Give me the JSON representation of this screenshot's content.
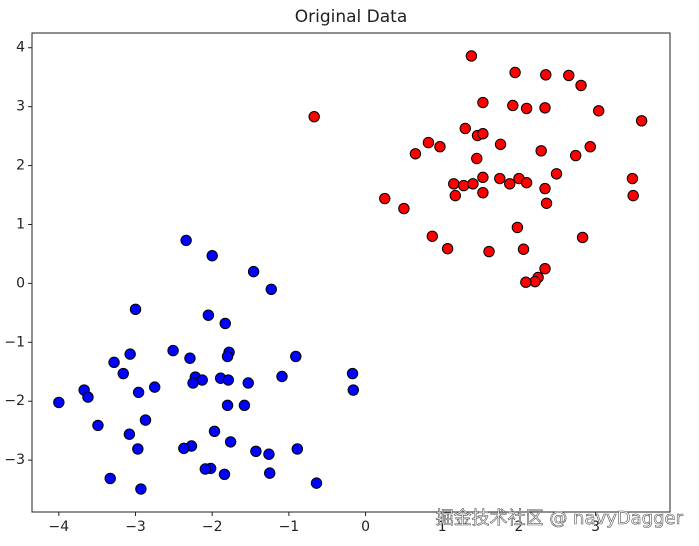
{
  "chart_data": {
    "type": "scatter",
    "title": "Original Data",
    "xlim": [
      -4.35,
      3.97
    ],
    "ylim": [
      -3.88,
      4.25
    ],
    "xticks": [
      {
        "value": -4,
        "label": "−4"
      },
      {
        "value": -3,
        "label": "−3"
      },
      {
        "value": -2,
        "label": "−2"
      },
      {
        "value": -1,
        "label": "−1"
      },
      0,
      1,
      2,
      3
    ],
    "yticks": [
      {
        "value": -3,
        "label": "−3"
      },
      {
        "value": -2,
        "label": "−2"
      },
      {
        "value": -1,
        "label": "−1"
      },
      0,
      1,
      2,
      3,
      4
    ],
    "grid": false,
    "series": [
      {
        "color": "#ff0000",
        "x": [
          1.38,
          1.95,
          2.35,
          2.65,
          2.81,
          1.53,
          1.92,
          2.1,
          2.34,
          3.04,
          -0.67,
          3.6,
          1.3,
          1.46,
          1.53,
          0.82,
          0.97,
          1.76,
          2.29,
          2.93,
          0.65,
          2.74,
          1.45,
          2.49,
          1.53,
          1.15,
          1.28,
          1.4,
          1.75,
          1.88,
          2.0,
          2.1,
          3.48,
          2.34,
          1.17,
          1.53,
          3.49,
          0.25,
          0.5,
          2.36,
          0.87,
          1.07,
          1.98,
          2.83,
          1.61,
          2.06,
          2.34,
          2.25,
          2.21,
          2.09
        ],
        "values": [
          3.86,
          3.58,
          3.54,
          3.53,
          3.36,
          3.07,
          3.02,
          2.97,
          2.98,
          2.93,
          2.83,
          2.76,
          2.63,
          2.51,
          2.54,
          2.39,
          2.32,
          2.36,
          2.25,
          2.32,
          2.2,
          2.17,
          2.12,
          1.86,
          1.8,
          1.69,
          1.66,
          1.69,
          1.78,
          1.69,
          1.78,
          1.71,
          1.78,
          1.61,
          1.49,
          1.54,
          1.49,
          1.44,
          1.27,
          1.36,
          0.8,
          0.59,
          0.95,
          0.78,
          0.54,
          0.58,
          0.25,
          0.1,
          0.03,
          0.02
        ]
      },
      {
        "color": "#0000ff",
        "x": [
          -2.34,
          -2.0,
          -1.46,
          -1.23,
          -3.0,
          -2.05,
          -1.83,
          -2.51,
          -3.07,
          -1.78,
          -1.8,
          -0.91,
          -2.29,
          -3.28,
          -3.16,
          -0.17,
          -1.09,
          -2.22,
          -2.13,
          -2.25,
          -1.89,
          -1.79,
          -1.53,
          -2.75,
          -3.67,
          -0.16,
          -2.96,
          -3.62,
          -4.0,
          -1.8,
          -1.58,
          -2.87,
          -3.49,
          -1.97,
          -3.08,
          -1.76,
          -2.27,
          -2.37,
          -2.97,
          -0.89,
          -1.43,
          -1.26,
          -2.02,
          -2.09,
          -1.84,
          -1.25,
          -3.33,
          -0.64,
          -2.93
        ],
        "values": [
          0.73,
          0.47,
          0.2,
          -0.1,
          -0.44,
          -0.54,
          -0.68,
          -1.14,
          -1.2,
          -1.17,
          -1.24,
          -1.24,
          -1.27,
          -1.34,
          -1.53,
          -1.53,
          -1.58,
          -1.59,
          -1.64,
          -1.69,
          -1.61,
          -1.64,
          -1.69,
          -1.76,
          -1.81,
          -1.81,
          -1.85,
          -1.93,
          -2.02,
          -2.07,
          -2.07,
          -2.32,
          -2.41,
          -2.51,
          -2.56,
          -2.69,
          -2.76,
          -2.8,
          -2.81,
          -2.81,
          -2.85,
          -2.9,
          -3.14,
          -3.15,
          -3.24,
          -3.22,
          -3.31,
          -3.39,
          -3.49
        ]
      }
    ],
    "annotation": "掘金技术社区 @ navyDagger"
  }
}
